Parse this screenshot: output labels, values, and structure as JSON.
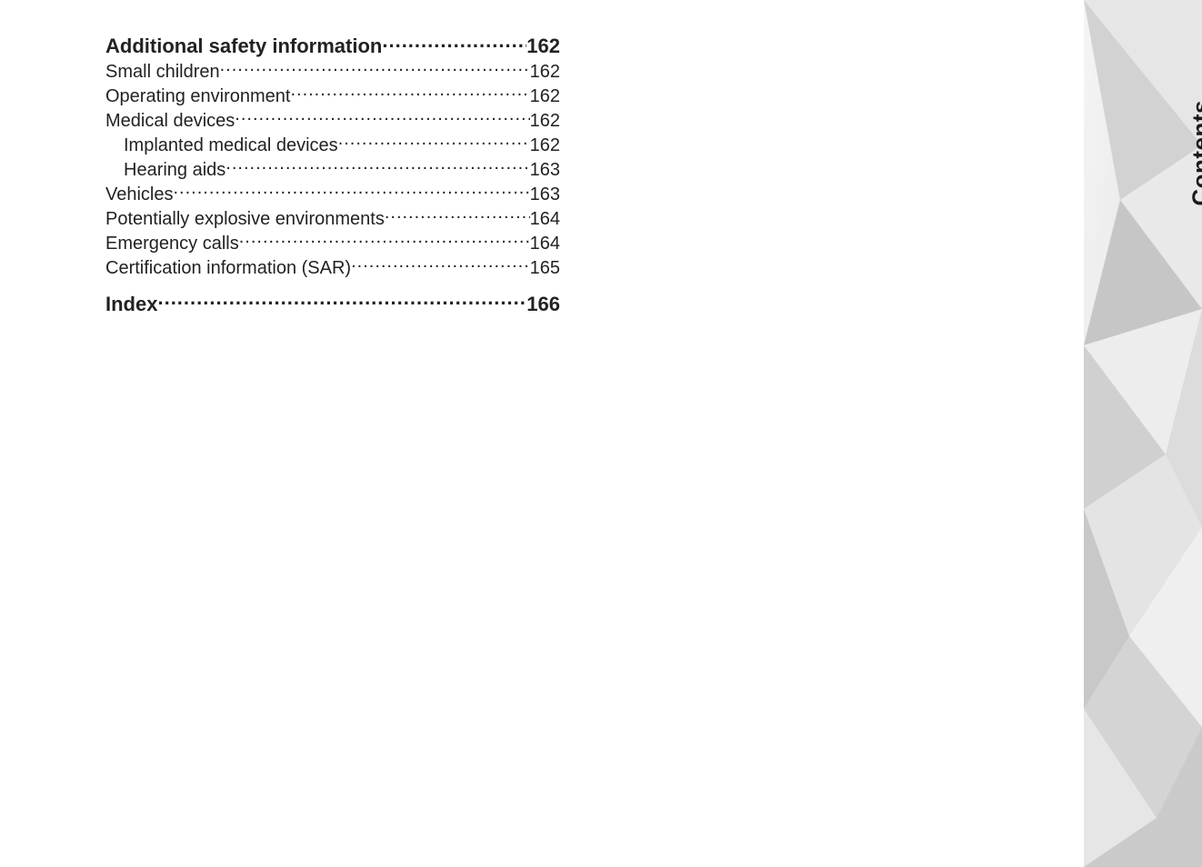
{
  "side_tab_label": "Contents",
  "text_color": "#222222",
  "background_color": "#ffffff",
  "heading_fontsize": 22,
  "entry_fontsize": 20,
  "side_label_fontsize": 26,
  "toc": [
    {
      "level": 0,
      "title": "Additional safety information",
      "page": "162"
    },
    {
      "level": 1,
      "title": "Small children",
      "page": "162"
    },
    {
      "level": 1,
      "title": "Operating environment",
      "page": "162"
    },
    {
      "level": 1,
      "title": "Medical devices",
      "page": "162"
    },
    {
      "level": 2,
      "title": "Implanted medical devices",
      "page": "162"
    },
    {
      "level": 2,
      "title": "Hearing aids",
      "page": "163"
    },
    {
      "level": 1,
      "title": "Vehicles",
      "page": "163"
    },
    {
      "level": 1,
      "title": "Potentially explosive environments",
      "page": "164"
    },
    {
      "level": 1,
      "title": "Emergency calls",
      "page": "164"
    },
    {
      "level": 1,
      "title": "Certification information (SAR)",
      "page": "165"
    },
    {
      "level": 0,
      "title": "Index",
      "page": "166"
    }
  ],
  "side_tab_gradient": {
    "colors": [
      "#f5f5f5",
      "#d0d0d0",
      "#e8e8e8",
      "#bcbcbc",
      "#dcdcdc",
      "#c6c6c6"
    ],
    "type": "triangular-abstract"
  }
}
